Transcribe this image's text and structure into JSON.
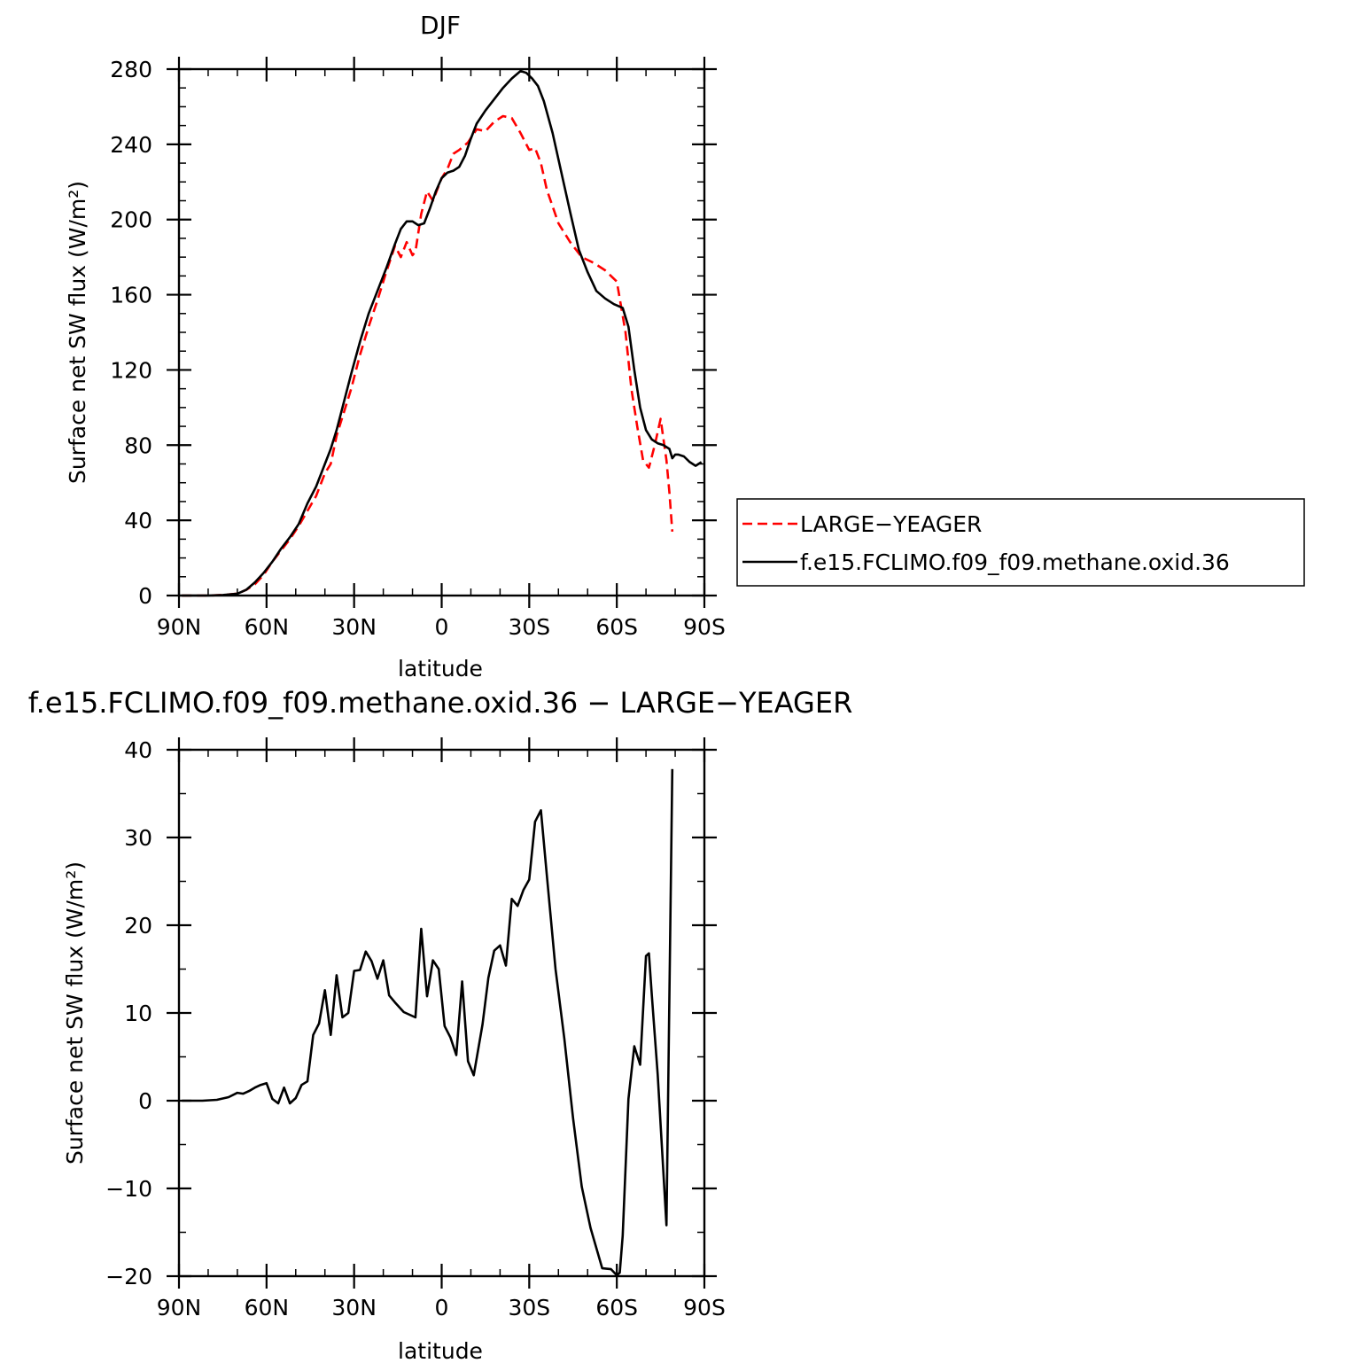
{
  "chart_data": [
    {
      "type": "line",
      "title": "DJF",
      "xlabel": "latitude",
      "ylabel": "Surface net SW flux (W/m²)",
      "xlim": [
        90,
        -90
      ],
      "ylim": [
        0,
        280
      ],
      "x_ticks": [
        90,
        60,
        30,
        0,
        -30,
        -60,
        -90
      ],
      "x_tick_labels": [
        "90N",
        "60N",
        "30N",
        "0",
        "30S",
        "60S",
        "90S"
      ],
      "y_ticks": [
        0,
        40,
        80,
        120,
        160,
        200,
        240,
        280
      ],
      "y_tick_labels": [
        "0",
        "40",
        "80",
        "120",
        "160",
        "200",
        "240",
        "280"
      ],
      "legend": "right",
      "series": [
        {
          "name": "LARGE−YEAGER",
          "color": "#ff0000",
          "style": "dashed",
          "x": [
            89,
            80,
            75,
            70,
            67,
            64,
            61,
            58,
            55,
            52,
            49,
            46,
            43,
            40,
            38,
            36,
            34,
            31,
            28,
            25,
            22,
            19,
            16,
            14,
            12,
            10,
            9,
            7,
            5,
            3,
            0,
            -2,
            -4,
            -6,
            -9,
            -12,
            -15,
            -18,
            -21,
            -24,
            -27,
            -30,
            -32,
            -34,
            -36,
            -40,
            -44,
            -48,
            -52,
            -56,
            -60,
            -63,
            -65,
            -67,
            -69,
            -71,
            -73,
            -75,
            -77,
            -78,
            -79
          ],
          "y": [
            0,
            0,
            0.3,
            1,
            3,
            6,
            11,
            18,
            24,
            30,
            37,
            45,
            53,
            65,
            70,
            85,
            95,
            110,
            128,
            143,
            157,
            172,
            186,
            180,
            188,
            181,
            183,
            203,
            215,
            210,
            222,
            227,
            235,
            237,
            241,
            248,
            247,
            252,
            255,
            254,
            246,
            237,
            238,
            230,
            216,
            198,
            188,
            180,
            177,
            173,
            167,
            140,
            110,
            90,
            72,
            68,
            80,
            94,
            72,
            55,
            34
          ]
        },
        {
          "name": "f.e15.FCLIMO.f09_f09.methane.oxid.36",
          "color": "#000000",
          "style": "solid",
          "x": [
            89,
            80,
            75,
            70,
            67,
            64,
            61,
            58,
            55,
            52,
            49,
            46,
            43,
            40,
            38,
            36,
            34,
            31,
            28,
            25,
            22,
            19,
            16,
            14,
            12,
            10,
            8,
            6,
            4,
            2,
            0,
            -2,
            -4,
            -6,
            -8,
            -10,
            -12,
            -15,
            -18,
            -21,
            -24,
            -27,
            -29,
            -31,
            -33,
            -35,
            -38,
            -41,
            -44,
            -47,
            -50,
            -53,
            -56,
            -59,
            -62,
            -64,
            -66,
            -68,
            -70,
            -72,
            -74,
            -76,
            -78,
            -79,
            -80,
            -81,
            -83,
            -85,
            -87,
            -89
          ],
          "y": [
            0,
            0,
            0.3,
            1,
            3,
            7,
            12,
            18,
            25,
            31,
            38,
            49,
            58,
            70,
            78,
            88,
            100,
            118,
            135,
            150,
            162,
            174,
            187,
            195,
            199,
            199,
            197,
            198,
            206,
            215,
            222,
            225,
            226,
            228,
            234,
            243,
            251,
            258,
            264,
            270,
            275,
            279,
            278,
            275,
            271,
            263,
            246,
            225,
            204,
            184,
            172,
            162,
            158,
            155,
            153,
            143,
            120,
            100,
            88,
            83,
            81,
            80,
            78,
            73,
            75,
            75,
            74,
            71,
            69,
            71
          ]
        }
      ]
    },
    {
      "type": "line",
      "title": "f.e15.FCLIMO.f09_f09.methane.oxid.36 − LARGE−YEAGER",
      "xlabel": "latitude",
      "ylabel": "Surface net SW flux (W/m²)",
      "xlim": [
        90,
        -90
      ],
      "ylim": [
        -20,
        40
      ],
      "x_ticks": [
        90,
        60,
        30,
        0,
        -30,
        -60,
        -90
      ],
      "x_tick_labels": [
        "90N",
        "60N",
        "30N",
        "0",
        "30S",
        "60S",
        "90S"
      ],
      "y_ticks": [
        -20,
        -10,
        0,
        10,
        20,
        30,
        40
      ],
      "y_tick_labels": [
        "−20",
        "−10",
        "0",
        "10",
        "20",
        "30",
        "40"
      ],
      "series": [
        {
          "color": "#000000",
          "style": "solid",
          "x": [
            89,
            82,
            77,
            73,
            70,
            68,
            66,
            64,
            62,
            60,
            58,
            56,
            54,
            52,
            50,
            48,
            46,
            44,
            42,
            40,
            38,
            36,
            34,
            32,
            30,
            28,
            26,
            24,
            22,
            20,
            18,
            16,
            13,
            11,
            9,
            7,
            5,
            3,
            1,
            -1,
            -3,
            -5,
            -7,
            -9,
            -11,
            -14,
            -16,
            -18,
            -20,
            -22,
            -24,
            -26,
            -28,
            -30,
            -32,
            -34,
            -36,
            -39,
            -42,
            -45,
            -48,
            -51,
            -55,
            -58,
            -60,
            -61,
            -62,
            -64,
            -66,
            -68,
            -70,
            -71,
            -72,
            -74,
            -77,
            -79
          ],
          "y": [
            0,
            0,
            0.1,
            0.4,
            0.9,
            0.8,
            1.1,
            1.5,
            1.8,
            2.0,
            0.2,
            -0.3,
            1.5,
            -0.3,
            0.3,
            1.8,
            2.2,
            7.5,
            8.8,
            12.6,
            7.5,
            14.3,
            9.5,
            10.0,
            14.8,
            14.9,
            17.0,
            15.9,
            13.9,
            16.0,
            12.0,
            11.2,
            10.1,
            9.8,
            9.5,
            19.6,
            11.9,
            16.0,
            15.0,
            8.5,
            7.2,
            5.2,
            13.6,
            4.5,
            2.9,
            8.7,
            14.0,
            17.1,
            17.7,
            15.4,
            23.0,
            22.2,
            24.0,
            25.2,
            31.8,
            33.1,
            25.8,
            15.0,
            7.1,
            -2.0,
            -9.8,
            -14.5,
            -19.1,
            -19.2,
            -19.9,
            -19.6,
            -15.4,
            0.2,
            6.2,
            4.1,
            16.5,
            16.8,
            12.0,
            3.0,
            -14.2,
            37.8
          ]
        }
      ]
    }
  ]
}
